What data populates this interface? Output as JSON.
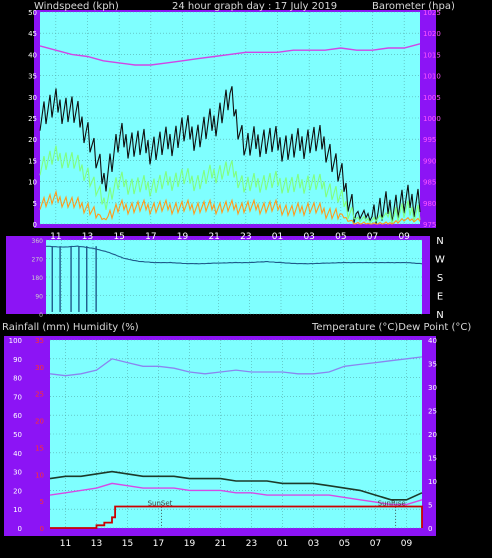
{
  "header": {
    "left_title": "Windspeed (kph)",
    "center_title": "24 hour graph day : 17 July 2019",
    "right_title": "Barometer (hpa)"
  },
  "lower_header": {
    "left_title": "Rainfall (mm)  Humidity (%)",
    "right_title": "Temperature (°C)Dew Point (°C)"
  },
  "x_tick_labels": [
    "11",
    "13",
    "15",
    "17",
    "19",
    "21",
    "23",
    "01",
    "03",
    "05",
    "07",
    "09"
  ],
  "colors": {
    "panel_bg": "#7fffff",
    "axis_bg": "#8c14f5",
    "grid": "#55aaaa",
    "wind_gust": "#101010",
    "wind_avg": "#80ff80",
    "wind_low": "#ff9a1c",
    "barometer": "#d046e6",
    "direction": "#1e5a8a",
    "temperature": "#1c3a2a",
    "dew_point": "#d64ae6",
    "humidity": "#8a86f0",
    "rainfall": "#cc0000"
  },
  "chart_data": [
    {
      "type": "line",
      "title": "24 hour graph day : 17 July 2019",
      "x_axis_hours": [
        10,
        11,
        12,
        13,
        14,
        15,
        16,
        17,
        18,
        19,
        20,
        21,
        22,
        23,
        24,
        25,
        26,
        27,
        28,
        29,
        30,
        31,
        32,
        33,
        34
      ],
      "left_axis": {
        "label": "Windspeed (kph)",
        "ticks": [
          0,
          5,
          10,
          15,
          20,
          25,
          30,
          35,
          40,
          45,
          50
        ],
        "ylim": [
          0,
          50
        ]
      },
      "right_axis": {
        "label": "Barometer (hpa)",
        "ticks": [
          975,
          980,
          985,
          990,
          995,
          1000,
          1005,
          1010,
          1015,
          1020,
          1025
        ],
        "ylim": [
          975,
          1025
        ]
      },
      "series": [
        {
          "name": "Barometer (hpa)",
          "axis": "right",
          "x": [
            10,
            11,
            12,
            13,
            14,
            15,
            16,
            17,
            18,
            19,
            20,
            21,
            22,
            23,
            24,
            25,
            26,
            27,
            28,
            29,
            30,
            31,
            32,
            33,
            34
          ],
          "values": [
            1017,
            1016,
            1015,
            1014.5,
            1013.5,
            1013,
            1012.5,
            1012.5,
            1013,
            1013.5,
            1014,
            1014.5,
            1015,
            1015.5,
            1015.5,
            1015.5,
            1016,
            1016,
            1016,
            1016.5,
            1016,
            1016,
            1016.5,
            1016.5,
            1017.5
          ]
        },
        {
          "name": "Gust",
          "axis": "left",
          "x": [
            10,
            11,
            12,
            13,
            14,
            15,
            16,
            17,
            18,
            19,
            20,
            21,
            22,
            23,
            24,
            25,
            26,
            27,
            28,
            29,
            30,
            31,
            32,
            33,
            34
          ],
          "values": [
            26,
            28,
            27,
            22,
            10,
            20,
            19,
            18,
            19,
            22,
            21,
            24,
            30,
            18,
            20,
            19,
            18,
            20,
            19,
            11,
            2,
            2,
            4,
            5,
            6
          ]
        },
        {
          "name": "Average",
          "axis": "left",
          "x": [
            10,
            11,
            12,
            13,
            14,
            15,
            16,
            17,
            18,
            19,
            20,
            21,
            22,
            23,
            24,
            25,
            26,
            27,
            28,
            29,
            30,
            31,
            32,
            33,
            34
          ],
          "values": [
            14,
            16,
            15,
            12,
            5,
            10,
            9,
            9,
            10,
            11,
            10,
            12,
            13,
            9,
            10,
            10,
            9,
            10,
            9,
            6,
            1,
            1,
            2,
            3,
            3
          ]
        },
        {
          "name": "Low",
          "axis": "left",
          "x": [
            10,
            11,
            12,
            13,
            14,
            15,
            16,
            17,
            18,
            19,
            20,
            21,
            22,
            23,
            24,
            25,
            26,
            27,
            28,
            29,
            30,
            31,
            32,
            33,
            34
          ],
          "values": [
            5,
            6,
            5,
            4,
            1,
            4,
            4,
            4,
            4,
            4,
            4,
            4,
            4,
            4,
            4,
            4,
            3,
            4,
            3,
            2,
            0,
            0,
            0,
            1,
            1
          ]
        }
      ]
    },
    {
      "type": "line",
      "title": "",
      "x_axis_hours": [
        10,
        11,
        12,
        13,
        14,
        15,
        16,
        17,
        18,
        19,
        20,
        21,
        22,
        23,
        24,
        25,
        26,
        27,
        28,
        29,
        30,
        31,
        32,
        33,
        34
      ],
      "y_ticks": [
        0,
        90,
        180,
        270,
        360
      ],
      "ylim": [
        0,
        360
      ],
      "direction_labels": [
        "N",
        "W",
        "S",
        "E",
        "N"
      ],
      "series": [
        {
          "name": "Wind direction",
          "x": [
            10,
            11,
            12,
            13,
            14,
            15,
            16,
            17,
            18,
            19,
            20,
            21,
            22,
            23,
            24,
            25,
            26,
            27,
            28,
            29,
            30,
            31,
            32,
            33,
            34
          ],
          "values": [
            330,
            325,
            330,
            320,
            300,
            270,
            255,
            250,
            250,
            245,
            245,
            248,
            250,
            250,
            255,
            250,
            245,
            245,
            248,
            250,
            250,
            250,
            250,
            250,
            245
          ]
        }
      ]
    },
    {
      "type": "line",
      "title": "",
      "x_axis_hours": [
        10,
        11,
        12,
        13,
        14,
        15,
        16,
        17,
        18,
        19,
        20,
        21,
        22,
        23,
        24,
        25,
        26,
        27,
        28,
        29,
        30,
        31,
        32,
        33,
        34
      ],
      "left_axis": {
        "label": "Humidity (%)",
        "ticks": [
          0,
          10,
          20,
          30,
          40,
          50,
          60,
          70,
          80,
          90,
          100
        ],
        "ylim": [
          0,
          100
        ]
      },
      "rain_axis": {
        "label": "Rainfall (mm)",
        "ticks": [
          0,
          5,
          10,
          15,
          20,
          25,
          30,
          35
        ],
        "ylim": [
          0,
          35
        ]
      },
      "right_axis": {
        "label": "Temperature (°C)",
        "ticks": [
          0,
          5,
          10,
          15,
          20,
          25,
          30,
          35,
          40
        ],
        "ylim": [
          0,
          40
        ]
      },
      "annotations": [
        "SunSet",
        "SunRise"
      ],
      "series": [
        {
          "name": "Humidity (%)",
          "axis": "left",
          "x": [
            10,
            11,
            12,
            13,
            14,
            15,
            16,
            17,
            18,
            19,
            20,
            21,
            22,
            23,
            24,
            25,
            26,
            27,
            28,
            29,
            30,
            31,
            32,
            33,
            34
          ],
          "values": [
            82,
            81,
            82,
            84,
            90,
            88,
            86,
            86,
            85,
            83,
            82,
            83,
            84,
            83,
            83,
            83,
            82,
            82,
            83,
            86,
            87,
            88,
            89,
            90,
            91
          ]
        },
        {
          "name": "Temperature (°C)",
          "axis": "right",
          "x": [
            10,
            11,
            12,
            13,
            14,
            15,
            16,
            17,
            18,
            19,
            20,
            21,
            22,
            23,
            24,
            25,
            26,
            27,
            28,
            29,
            30,
            31,
            32,
            33,
            34
          ],
          "values": [
            10.5,
            11,
            11,
            11.5,
            12,
            11.5,
            11,
            11,
            11,
            10.5,
            10.5,
            10.5,
            10,
            10,
            10,
            9.5,
            9.5,
            9.5,
            9,
            8.5,
            8,
            7,
            6,
            6,
            7.5
          ]
        },
        {
          "name": "Dew Point (°C)",
          "axis": "right",
          "x": [
            10,
            11,
            12,
            13,
            14,
            15,
            16,
            17,
            18,
            19,
            20,
            21,
            22,
            23,
            24,
            25,
            26,
            27,
            28,
            29,
            30,
            31,
            32,
            33,
            34
          ],
          "values": [
            7,
            7.5,
            8,
            8.5,
            9.5,
            9,
            8.5,
            8.5,
            8.5,
            8,
            8,
            8,
            7.5,
            7.5,
            7,
            7,
            7,
            7,
            7,
            6.5,
            6,
            5.5,
            5,
            5,
            6
          ]
        },
        {
          "name": "Rainfall (mm)",
          "axis": "rain",
          "x": [
            10,
            11,
            12,
            13,
            13.5,
            14,
            14.2,
            15,
            16,
            17,
            18,
            19,
            20,
            21,
            22,
            23,
            24,
            25,
            26,
            27,
            28,
            29,
            30,
            31,
            32,
            33,
            33.8,
            34
          ],
          "values": [
            0,
            0,
            0,
            0.5,
            1,
            2,
            4,
            4,
            4,
            4,
            4,
            4,
            4,
            4,
            4,
            4,
            4,
            4,
            4,
            4,
            4,
            4,
            4,
            4,
            4,
            4,
            4,
            0
          ]
        }
      ]
    }
  ]
}
